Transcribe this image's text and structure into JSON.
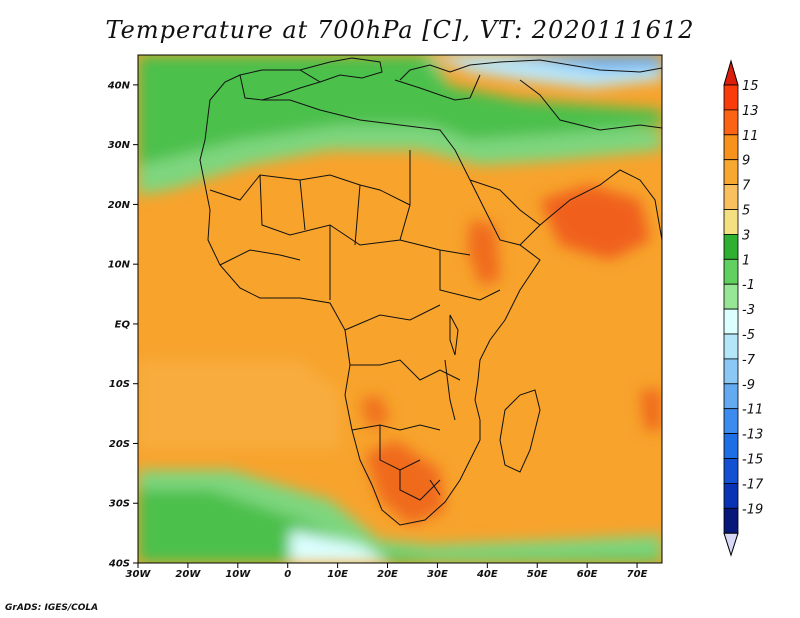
{
  "title": "Temperature at 700hPa [C], VT: 2020111612",
  "credit": "GrADS: IGES/COLA",
  "map": {
    "lon_range": [
      -30,
      75
    ],
    "lat_range": [
      -40,
      45
    ],
    "lon_ticks": [
      {
        "value": -30,
        "label": "30W"
      },
      {
        "value": -20,
        "label": "20W"
      },
      {
        "value": -10,
        "label": "10W"
      },
      {
        "value": 0,
        "label": "0"
      },
      {
        "value": 10,
        "label": "10E"
      },
      {
        "value": 20,
        "label": "20E"
      },
      {
        "value": 30,
        "label": "30E"
      },
      {
        "value": 40,
        "label": "40E"
      },
      {
        "value": 50,
        "label": "50E"
      },
      {
        "value": 60,
        "label": "60E"
      },
      {
        "value": 70,
        "label": "70E"
      }
    ],
    "lat_ticks": [
      {
        "value": 40,
        "label": "40N"
      },
      {
        "value": 30,
        "label": "30N"
      },
      {
        "value": 20,
        "label": "20N"
      },
      {
        "value": 10,
        "label": "10N"
      },
      {
        "value": 0,
        "label": "EQ"
      },
      {
        "value": -10,
        "label": "10S"
      },
      {
        "value": -20,
        "label": "20S"
      },
      {
        "value": -30,
        "label": "30S"
      },
      {
        "value": -40,
        "label": "40S"
      }
    ]
  },
  "colorbar": {
    "labels": [
      "15",
      "13",
      "11",
      "9",
      "7",
      "5",
      "3",
      "1",
      "-1",
      "-3",
      "-5",
      "-7",
      "-9",
      "-11",
      "-13",
      "-15",
      "-17",
      "-19"
    ],
    "colors": [
      "#fa3c0a",
      "#fa6414",
      "#f7921c",
      "#f7a830",
      "#f9c060",
      "#f4e080",
      "#30b030",
      "#60d060",
      "#96e696",
      "#dcffff",
      "#b4e6fa",
      "#8cc8f5",
      "#64aaf0",
      "#3c8cf0",
      "#1e6ee6",
      "#1450d2",
      "#0a32b4",
      "#08187a"
    ],
    "top_cap_color": "#dc1e0a",
    "bottom_cap_color": "#d8d8f8"
  }
}
